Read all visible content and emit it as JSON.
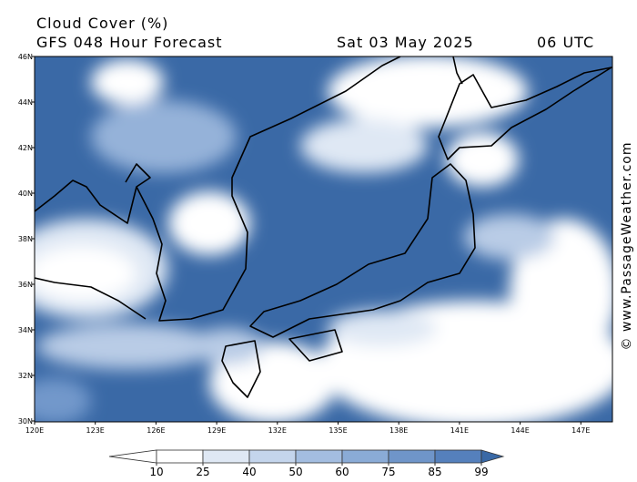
{
  "header": {
    "title": "Cloud Cover (%)",
    "subtitle": "GFS 048 Hour Forecast",
    "date": "Sat 03 May 2025",
    "time": "06 UTC"
  },
  "map": {
    "lat_labels": [
      "46N",
      "44N",
      "42N",
      "40N",
      "38N",
      "36N",
      "34N",
      "32N",
      "30N"
    ],
    "lon_labels": [
      "120E",
      "123E",
      "126E",
      "129E",
      "132E",
      "135E",
      "138E",
      "141E",
      "144E",
      "147E"
    ]
  },
  "legend": {
    "values": [
      10,
      25,
      40,
      50,
      60,
      75,
      85,
      99
    ]
  },
  "credit": "© www.PassageWeather.com"
}
